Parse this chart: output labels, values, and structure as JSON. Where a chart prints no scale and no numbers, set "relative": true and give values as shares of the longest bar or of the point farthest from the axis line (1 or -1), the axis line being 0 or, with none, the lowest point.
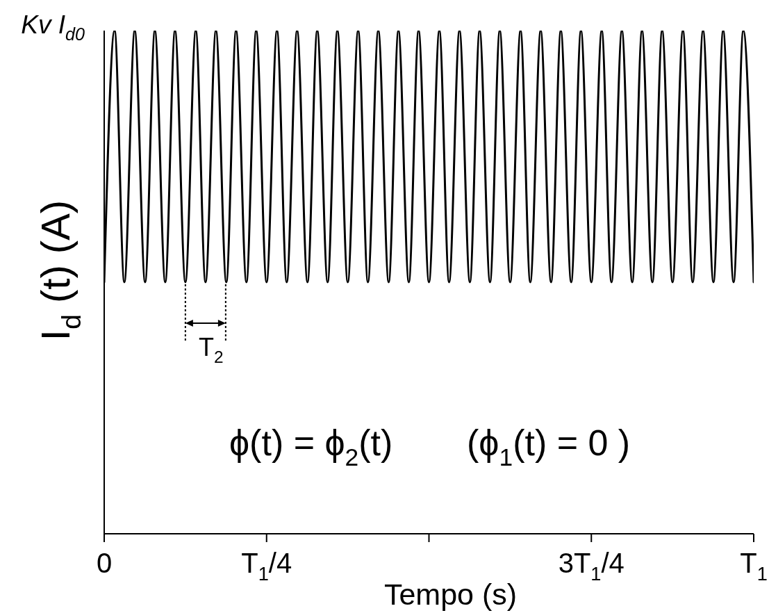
{
  "chart_data": {
    "type": "line",
    "xlabel": "Tempo (s)",
    "ylabel": "I$_{d}$ (t) (A)",
    "relative": true,
    "x": [
      0,
      0.016,
      0.031,
      0.047,
      0.063,
      0.078,
      0.094,
      0.109,
      0.125,
      0.141,
      0.156,
      0.172,
      0.188,
      0.203,
      0.219,
      0.234,
      0.25,
      0.266,
      0.281,
      0.297,
      0.313,
      0.328,
      0.344,
      0.359,
      0.375,
      0.391,
      0.406,
      0.422,
      0.438,
      0.453,
      0.469,
      0.484,
      0.5,
      0.516,
      0.531,
      0.547,
      0.563,
      0.578,
      0.594,
      0.609,
      0.625,
      0.641,
      0.656,
      0.672,
      0.688,
      0.703,
      0.719,
      0.734,
      0.75,
      0.766,
      0.781,
      0.797,
      0.813,
      0.828,
      0.844,
      0.859,
      0.875,
      0.891,
      0.906,
      0.922,
      0.938,
      0.953,
      0.969,
      0.984,
      1
    ],
    "series": [
      {
        "color": "#000000",
        "values": [
          0.5,
          1,
          0.5,
          1,
          0.5,
          1,
          0.5,
          1,
          0.5,
          1,
          0.5,
          1,
          0.5,
          1,
          0.5,
          1,
          0.5,
          1,
          0.5,
          1,
          0.5,
          1,
          0.5,
          1,
          0.5,
          1,
          0.5,
          1,
          0.5,
          1,
          0.5,
          1,
          0.5,
          1,
          0.5,
          1,
          0.5,
          1,
          0.5,
          1,
          0.5,
          1,
          0.5,
          1,
          0.5,
          1,
          0.5,
          1,
          0.5,
          1,
          0.5,
          1,
          0.5,
          1,
          0.5,
          1,
          0.5,
          1,
          0.5,
          1,
          0.5,
          1,
          0.5,
          1,
          0.5
        ]
      }
    ],
    "xlim": [
      0,
      1
    ],
    "xticks": [
      0,
      {
        "value": 0.25,
        "label": "T$_{1}$/4"
      },
      {
        "value": 0.5,
        "label": null
      },
      {
        "value": 0.75,
        "label": "3T$_{1}$/4"
      },
      {
        "value": 1,
        "label": "T$_{1}$"
      }
    ],
    "annotations": [
      "Kv I$_{d0}$",
      {
        "text": "T$_{2}$",
        "x": 0.156,
        "y": 0.5
      },
      "ϕ(t) = ϕ$_{2}$(t)",
      "(ϕ$_{1}$(t) = 0 )"
    ]
  }
}
